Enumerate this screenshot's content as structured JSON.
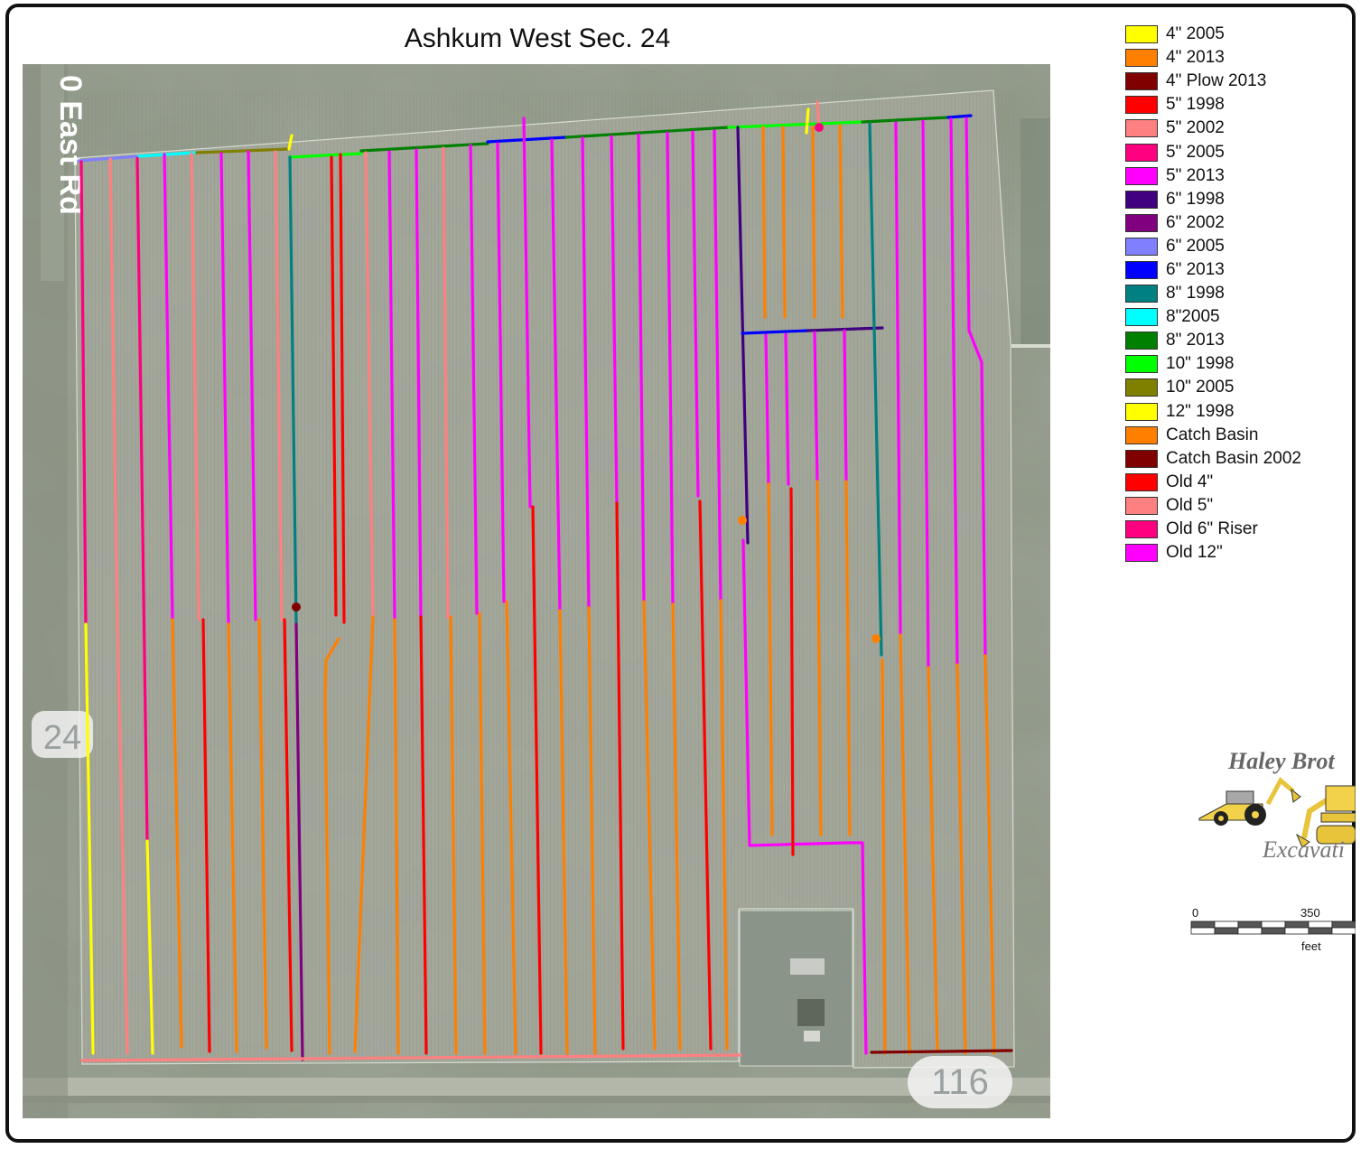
{
  "title": "Ashkum West Sec. 24",
  "map": {
    "road_labels": {
      "east_rd": "0 East Rd",
      "route_24": "24",
      "route_116": "116"
    }
  },
  "legend": [
    {
      "label": "4\" 2005",
      "color": "#ffff00"
    },
    {
      "label": "4\" 2013",
      "color": "#ff8000"
    },
    {
      "label": "4\" Plow 2013",
      "color": "#800000"
    },
    {
      "label": "5\" 1998",
      "color": "#ff0000"
    },
    {
      "label": "5\" 2002",
      "color": "#ff8080"
    },
    {
      "label": "5\" 2005",
      "color": "#ff0080"
    },
    {
      "label": "5\" 2013",
      "color": "#ff00ff"
    },
    {
      "label": "6\" 1998",
      "color": "#400080"
    },
    {
      "label": "6\" 2002",
      "color": "#800080"
    },
    {
      "label": "6\" 2005",
      "color": "#8080ff"
    },
    {
      "label": "6\" 2013",
      "color": "#0000ff"
    },
    {
      "label": "8\" 1998",
      "color": "#008080"
    },
    {
      "label": "8\"2005",
      "color": "#00ffff"
    },
    {
      "label": "8\" 2013",
      "color": "#008000"
    },
    {
      "label": "10\" 1998",
      "color": "#00ff00"
    },
    {
      "label": "10\" 2005",
      "color": "#808000"
    },
    {
      "label": "12\" 1998",
      "color": "#ffff00"
    },
    {
      "label": "Catch Basin",
      "color": "#ff8000"
    },
    {
      "label": "Catch Basin 2002",
      "color": "#800000"
    },
    {
      "label": "Old 4\"",
      "color": "#ff0000"
    },
    {
      "label": "Old 5\"",
      "color": "#ff8080"
    },
    {
      "label": "Old 6\" Riser",
      "color": "#ff0080"
    },
    {
      "label": "Old 12\"",
      "color": "#ff00ff"
    }
  ],
  "logo": {
    "line1": "Haley Brot",
    "line2": "Excavati"
  },
  "scale": {
    "start": "0",
    "mid": "350",
    "unit": "feet"
  }
}
